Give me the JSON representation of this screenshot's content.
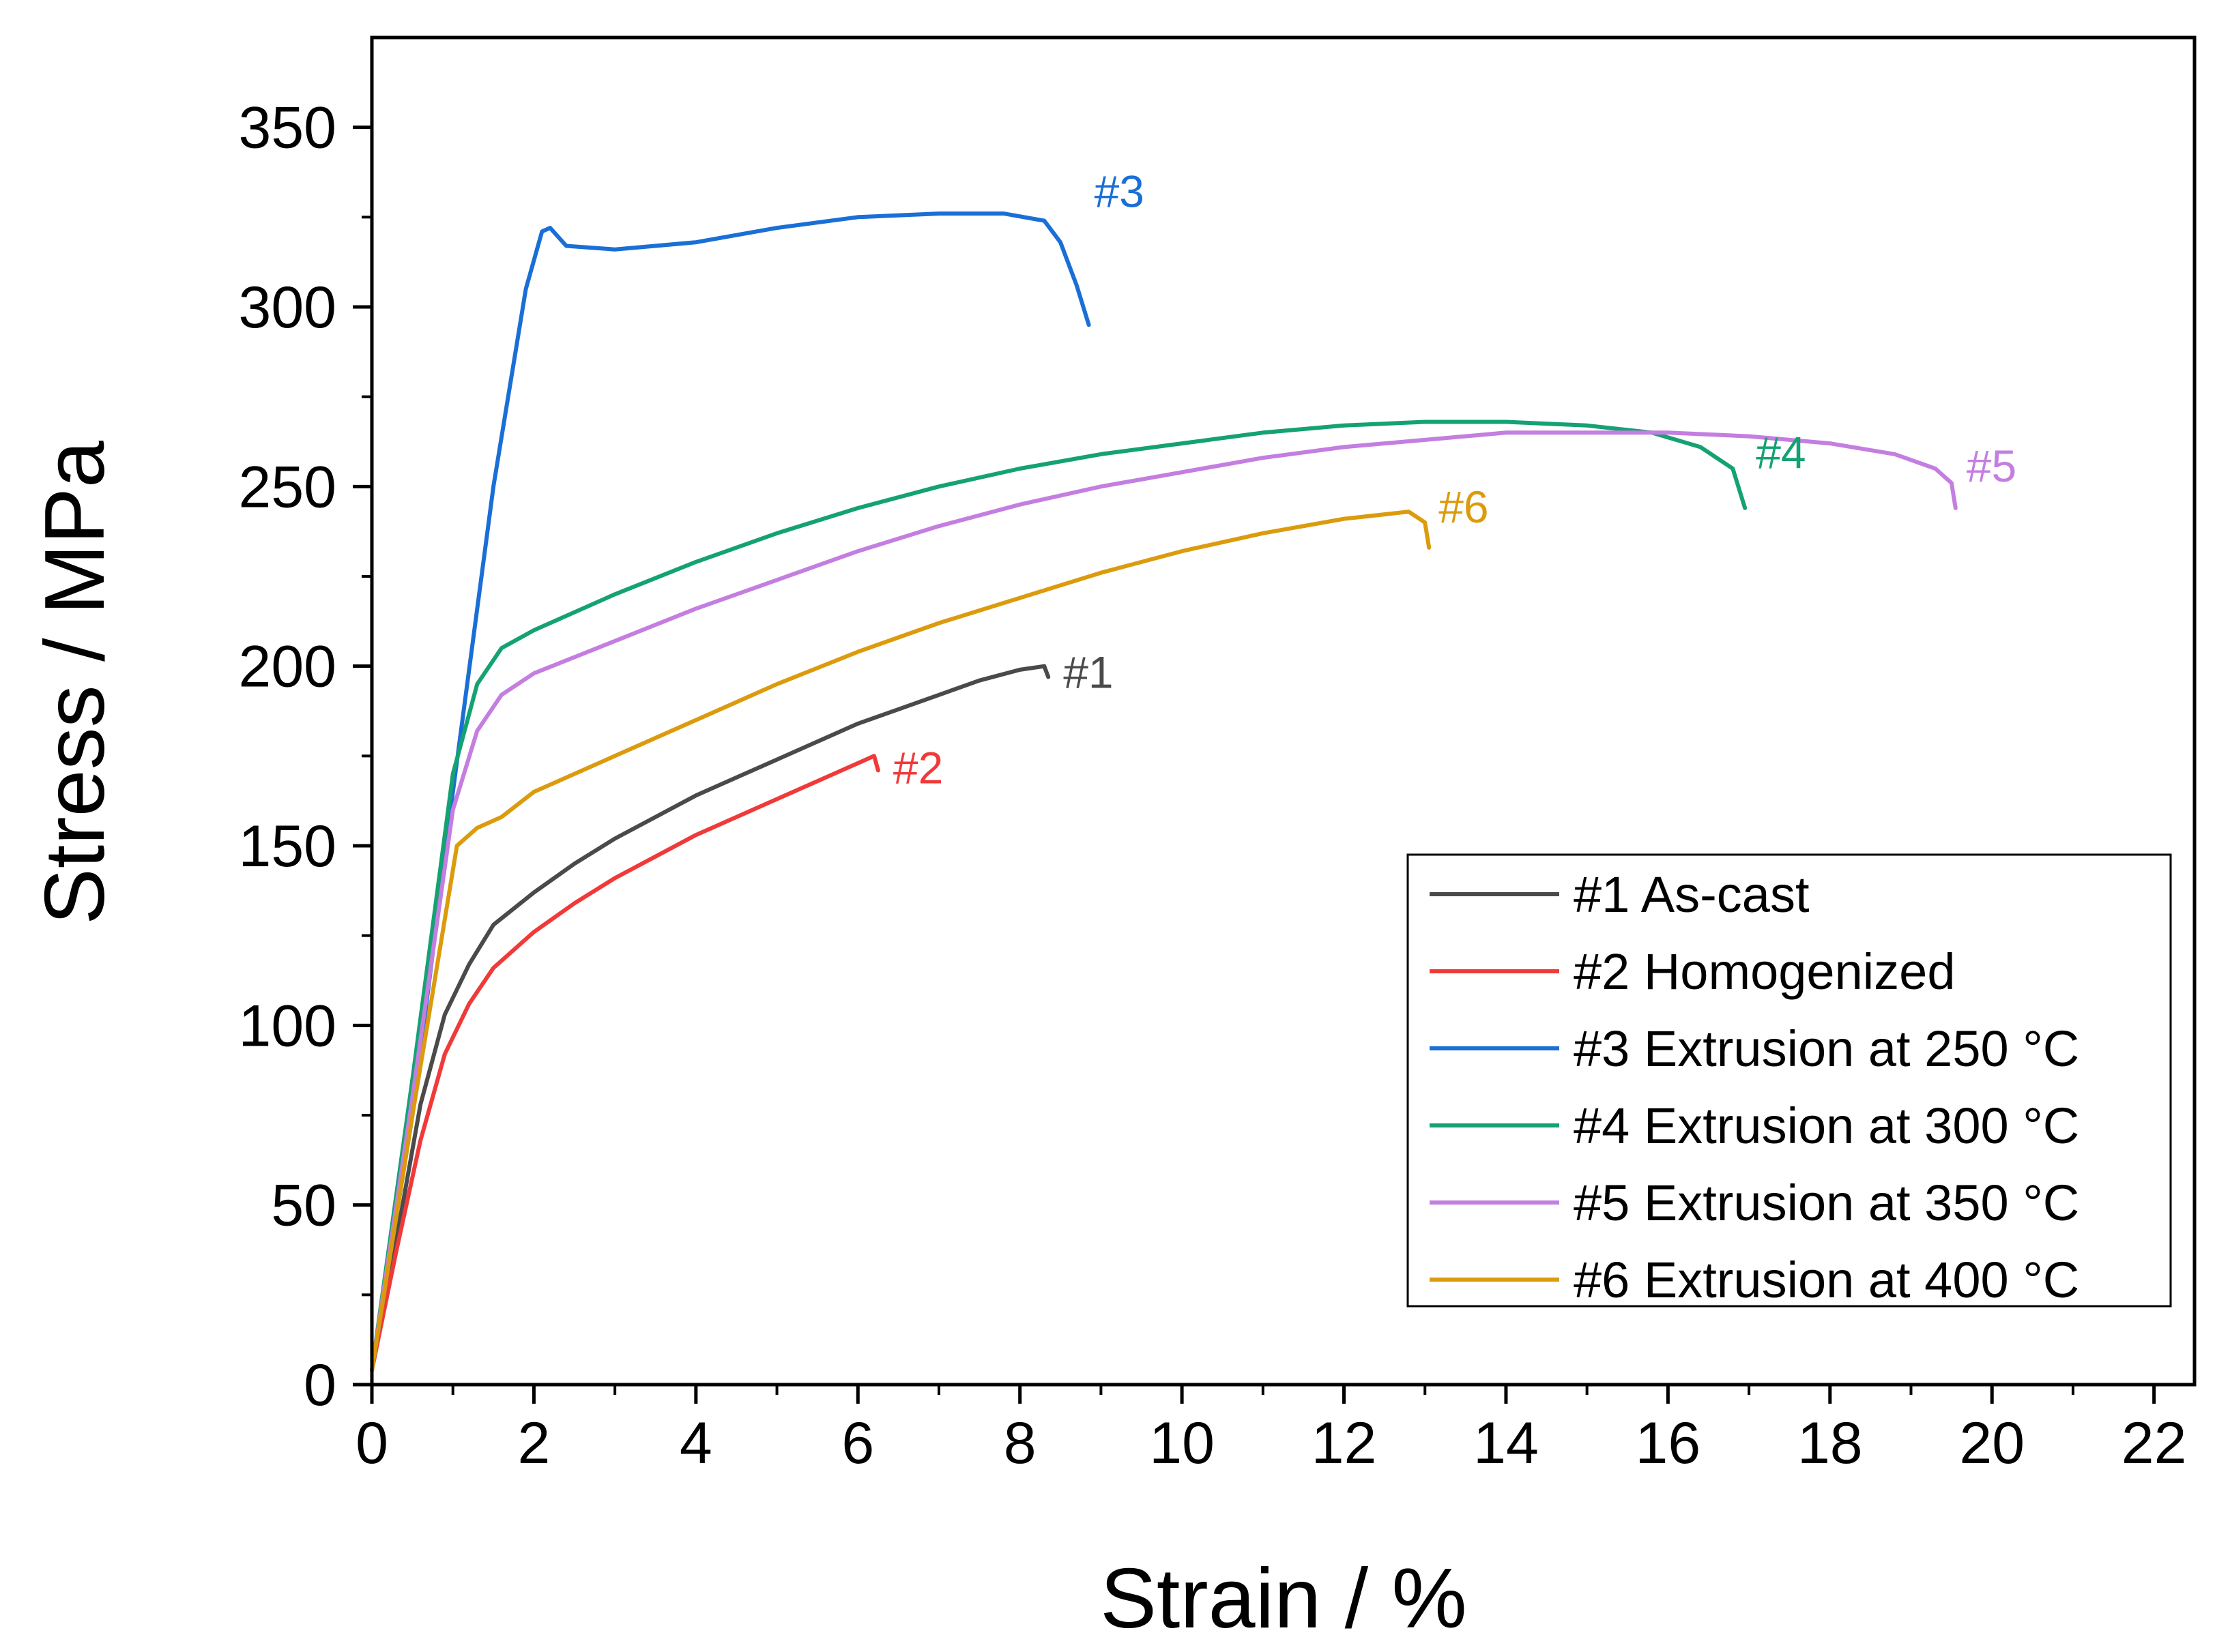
{
  "chart_data": {
    "type": "line",
    "xlabel": "Strain / %",
    "ylabel": "Stress / MPa",
    "xlim": [
      0,
      22.5
    ],
    "ylim": [
      0,
      375
    ],
    "xticks": [
      0,
      2,
      4,
      6,
      8,
      10,
      12,
      14,
      16,
      18,
      20,
      22
    ],
    "yticks": [
      0,
      50,
      100,
      150,
      200,
      250,
      300,
      350
    ],
    "grid": false,
    "legend_position": "bottom-right",
    "series": [
      {
        "name": "#1 As-cast",
        "label": "#1",
        "color": "#4a4a4a",
        "x": [
          0,
          0.3,
          0.6,
          0.9,
          1.2,
          1.5,
          2,
          2.5,
          3,
          3.5,
          4,
          4.5,
          5,
          5.5,
          6,
          6.5,
          7,
          7.5,
          8,
          8.3,
          8.35
        ],
        "y": [
          4,
          40,
          78,
          103,
          117,
          128,
          137,
          145,
          152,
          158,
          164,
          169,
          174,
          179,
          184,
          188,
          192,
          196,
          199,
          200,
          197
        ]
      },
      {
        "name": "#2 Homogenized",
        "label": "#2",
        "color": "#f03a3a",
        "x": [
          0,
          0.3,
          0.6,
          0.9,
          1.2,
          1.5,
          2,
          2.5,
          3,
          3.5,
          4,
          4.5,
          5,
          5.5,
          6,
          6.2,
          6.25
        ],
        "y": [
          4,
          37,
          68,
          92,
          106,
          116,
          126,
          134,
          141,
          147,
          153,
          158,
          163,
          168,
          173,
          175,
          171
        ]
      },
      {
        "name": "#3 Extrusion at 250 °C",
        "label": "#3",
        "color": "#1a6fd6",
        "x": [
          0,
          0.5,
          1,
          1.5,
          1.9,
          2.1,
          2.2,
          2.4,
          3,
          4,
          5,
          6,
          7,
          7.8,
          8.3,
          8.5,
          8.7,
          8.85
        ],
        "y": [
          4,
          75,
          165,
          250,
          305,
          321,
          322,
          317,
          316,
          318,
          322,
          325,
          326,
          326,
          324,
          318,
          306,
          295
        ]
      },
      {
        "name": "#4 Extrusion at 300 °C",
        "label": "#4",
        "color": "#15a273",
        "x": [
          0,
          0.5,
          1,
          1.3,
          1.6,
          2,
          3,
          4,
          5,
          6,
          7,
          8,
          9,
          10,
          11,
          12,
          13,
          14,
          15,
          15.8,
          16.4,
          16.8,
          16.95
        ],
        "y": [
          4,
          85,
          170,
          195,
          205,
          210,
          220,
          229,
          237,
          244,
          250,
          255,
          259,
          262,
          265,
          267,
          268,
          268,
          267,
          265,
          261,
          255,
          244
        ]
      },
      {
        "name": "#5 Extrusion at 350 °C",
        "label": "#5",
        "color": "#c47ee0",
        "x": [
          0,
          0.5,
          1,
          1.3,
          1.6,
          2,
          3,
          4,
          5,
          6,
          7,
          8,
          9,
          10,
          11,
          12,
          13,
          14,
          15,
          16,
          17,
          18,
          18.8,
          19.3,
          19.5,
          19.55
        ],
        "y": [
          4,
          80,
          160,
          182,
          192,
          198,
          207,
          216,
          224,
          232,
          239,
          245,
          250,
          254,
          258,
          261,
          263,
          265,
          265,
          265,
          264,
          262,
          259,
          255,
          251,
          244
        ]
      },
      {
        "name": "#6 Extrusion at 400 °C",
        "label": "#6",
        "color": "#dc9b0c",
        "x": [
          0,
          0.5,
          1.05,
          1.3,
          1.6,
          2,
          3,
          4,
          5,
          6,
          7,
          8,
          9,
          10,
          11,
          12,
          12.8,
          13,
          13.05
        ],
        "y": [
          4,
          75,
          150,
          155,
          158,
          165,
          175,
          185,
          195,
          204,
          212,
          219,
          226,
          232,
          237,
          241,
          243,
          240,
          233
        ]
      }
    ]
  }
}
